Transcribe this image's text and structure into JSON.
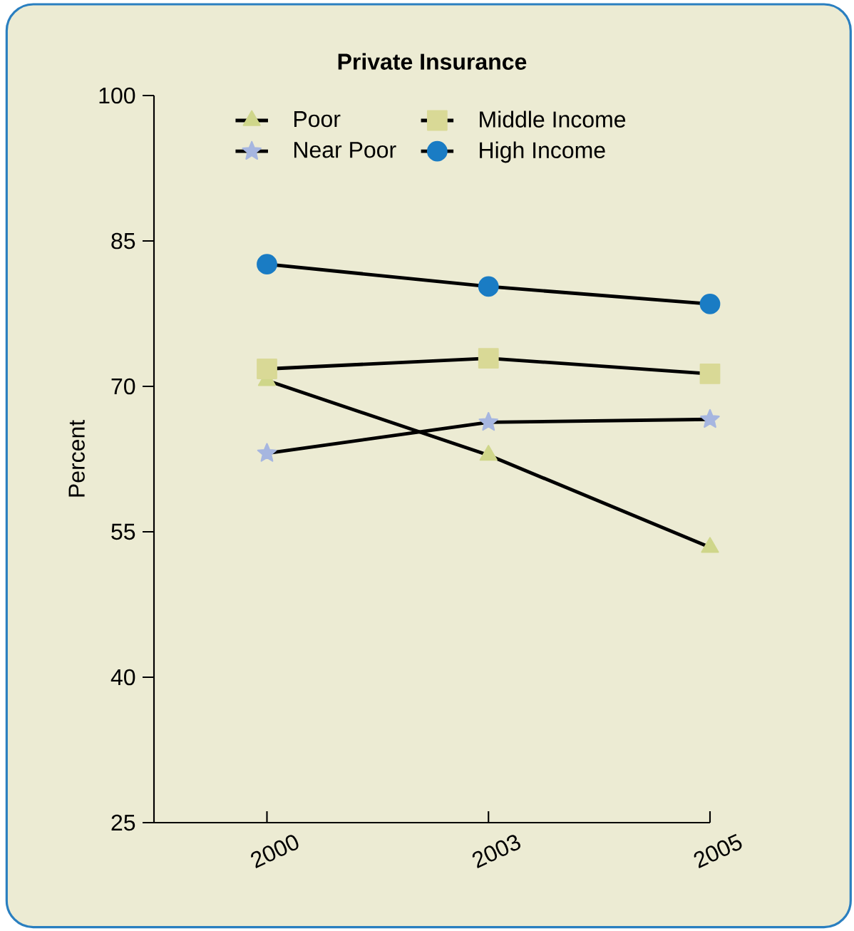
{
  "chart_data": {
    "type": "line",
    "title": "Private Insurance",
    "ylabel": "Percent",
    "categories": [
      "2000",
      "2003",
      "2005"
    ],
    "series": [
      {
        "name": "Poor",
        "color": "#cfd68a",
        "marker": "triangle",
        "values": [
          70.6,
          62.9,
          53.4
        ]
      },
      {
        "name": "Middle Income",
        "color": "#d9d996",
        "marker": "square",
        "values": [
          71.8,
          72.9,
          71.3
        ]
      },
      {
        "name": "Near Poor",
        "color": "#a6b6e0",
        "marker": "star",
        "values": [
          63.1,
          66.3,
          66.6
        ]
      },
      {
        "name": "High Income",
        "color": "#1a7cc4",
        "marker": "circle",
        "values": [
          82.6,
          80.3,
          78.5
        ]
      }
    ],
    "ylim": [
      25,
      100
    ],
    "yticks": [
      25,
      40,
      55,
      70,
      85,
      100
    ],
    "legend": "top",
    "grid": false
  }
}
